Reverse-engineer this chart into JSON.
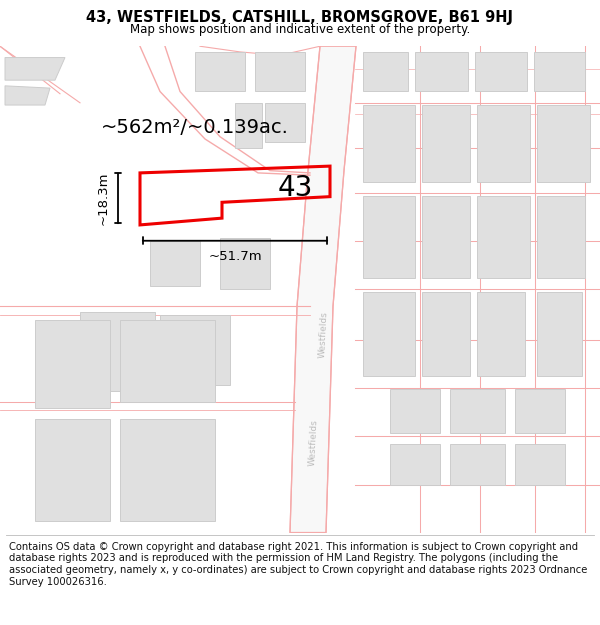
{
  "title": "43, WESTFIELDS, CATSHILL, BROMSGROVE, B61 9HJ",
  "subtitle": "Map shows position and indicative extent of the property.",
  "footer": "Contains OS data © Crown copyright and database right 2021. This information is subject to Crown copyright and database rights 2023 and is reproduced with the permission of HM Land Registry. The polygons (including the associated geometry, namely x, y co-ordinates) are subject to Crown copyright and database rights 2023 Ordnance Survey 100026316.",
  "area_label": "~562m²/~0.139ac.",
  "width_label": "~51.7m",
  "height_label": "~18.3m",
  "number_label": "43",
  "bg_color": "#ffffff",
  "road_color": "#f5aaaa",
  "road_fill": "#fdf0f0",
  "building_fill": "#e0e0e0",
  "building_edge": "#cccccc",
  "highlight_color": "#ee0000",
  "road_label_color": "#bbbbbb",
  "title_fontsize": 10.5,
  "subtitle_fontsize": 8.5,
  "footer_fontsize": 7.2,
  "number_fontsize": 20,
  "area_fontsize": 14,
  "dim_fontsize": 9.5
}
